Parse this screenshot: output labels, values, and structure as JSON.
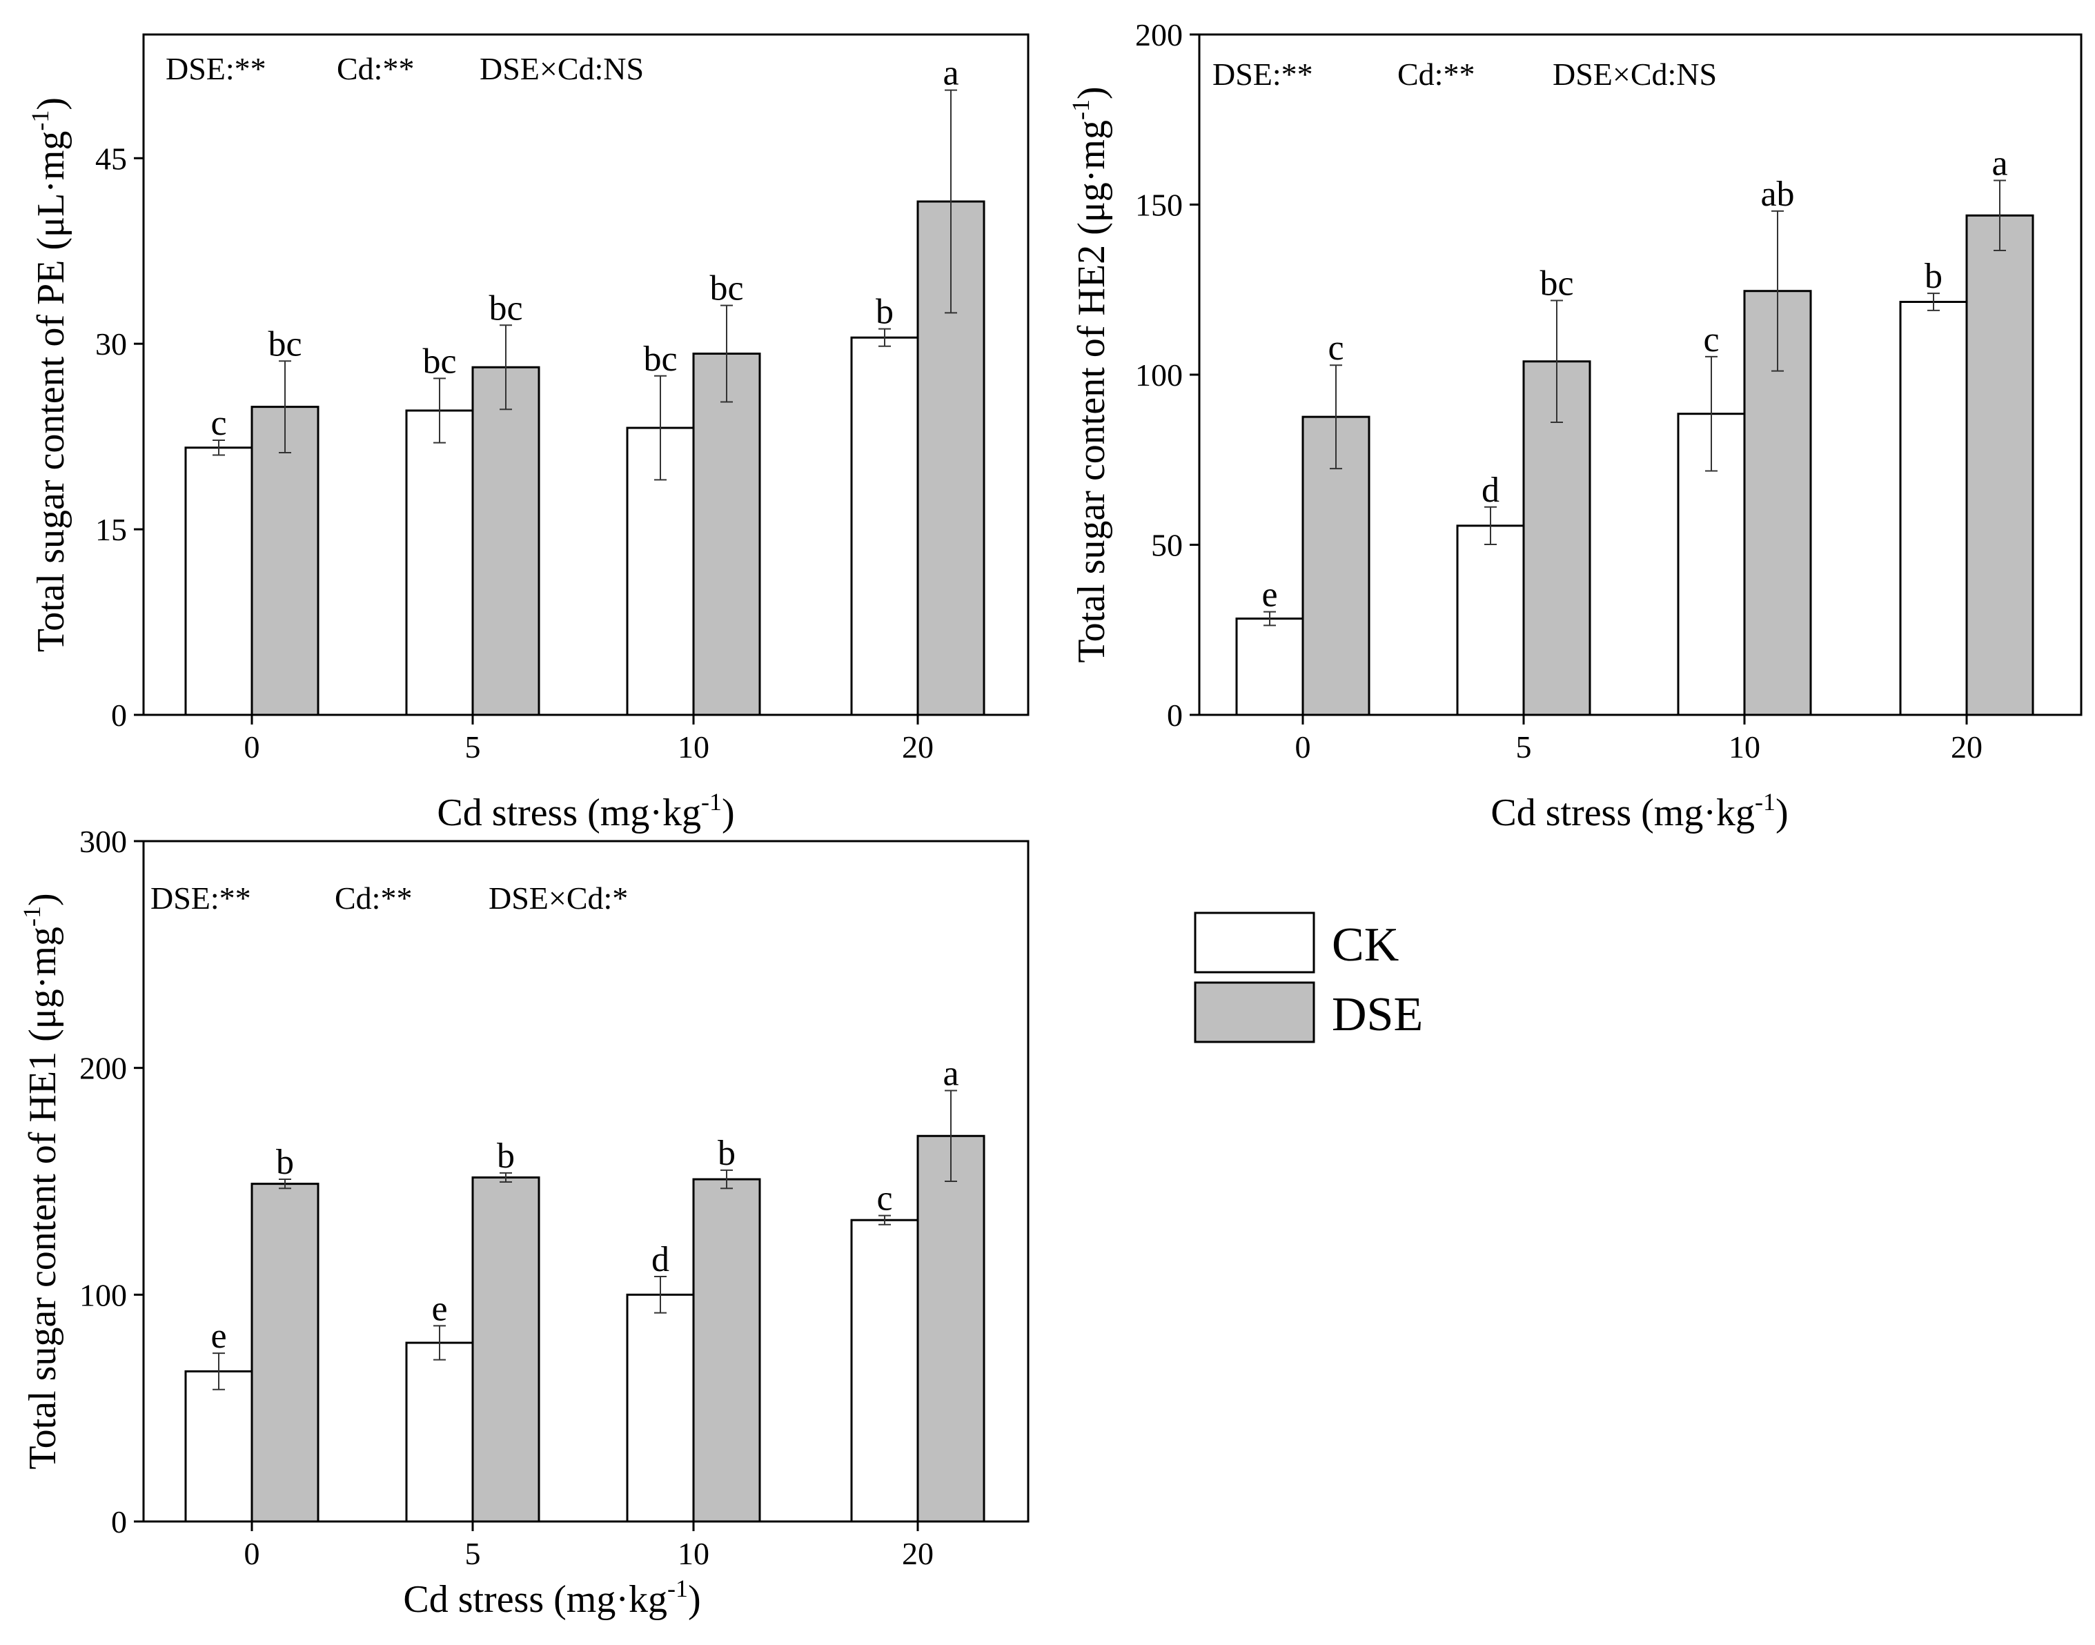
{
  "legend": {
    "items": [
      {
        "label": "CK",
        "color": "#ffffff"
      },
      {
        "label": "DSE",
        "color": "#bfbfbf"
      }
    ]
  },
  "chart_data": [
    {
      "id": "pe",
      "type": "bar",
      "title": "",
      "categories": [
        "0",
        "5",
        "10",
        "20"
      ],
      "xlabel_main": "Cd stress (mg·kg",
      "xlabel_sup": "-1",
      "xlabel_end": ")",
      "ylabel_main": "Total sugar content of PE  (μL·mg",
      "ylabel_sup": "-1",
      "ylabel_end": ")",
      "ylim": [
        0,
        55
      ],
      "yticks": [
        0,
        15,
        30,
        45
      ],
      "stats": [
        "DSE:**",
        "Cd:**",
        "DSE×Cd:NS"
      ],
      "series": [
        {
          "name": "CK",
          "values": [
            21.6,
            24.6,
            23.2,
            30.5
          ],
          "errors": [
            0.6,
            2.6,
            4.2,
            0.7
          ],
          "labels": [
            "c",
            "bc",
            "bc",
            "b"
          ]
        },
        {
          "name": "DSE",
          "values": [
            24.9,
            28.1,
            29.2,
            41.5
          ],
          "errors": [
            3.7,
            3.4,
            3.9,
            9.0
          ],
          "labels": [
            "bc",
            "bc",
            "bc",
            "a"
          ]
        }
      ]
    },
    {
      "id": "he2",
      "type": "bar",
      "title": "",
      "categories": [
        "0",
        "5",
        "10",
        "20"
      ],
      "xlabel_main": "Cd  stress (mg·kg",
      "xlabel_sup": "-1",
      "xlabel_end": ")",
      "ylabel_main": "Total sugar content of HE2 (μg·mg",
      "ylabel_sup": "-1",
      "ylabel_end": ")",
      "ylim": [
        0,
        200
      ],
      "yticks": [
        0,
        50,
        100,
        150,
        200
      ],
      "stats": [
        "DSE:**",
        "Cd:**",
        "DSE×Cd:NS"
      ],
      "series": [
        {
          "name": "CK",
          "values": [
            28.3,
            55.6,
            88.5,
            121.4
          ],
          "errors": [
            2.0,
            5.5,
            16.8,
            2.5
          ],
          "labels": [
            "e",
            "d",
            "c",
            "b"
          ]
        },
        {
          "name": "DSE",
          "values": [
            87.6,
            103.9,
            124.6,
            146.8
          ],
          "errors": [
            15.2,
            17.9,
            23.5,
            10.3
          ],
          "labels": [
            "c",
            "bc",
            "ab",
            "a"
          ]
        }
      ]
    },
    {
      "id": "he1",
      "type": "bar",
      "title": "",
      "categories": [
        "0",
        "5",
        "10",
        "20"
      ],
      "xlabel_main": "Cd stress (mg·kg",
      "xlabel_sup": "-1",
      "xlabel_end": ")",
      "ylabel_main": "Total sugar content of HE1 (μg·mg",
      "ylabel_sup": "-1",
      "ylabel_end": ")",
      "ylim": [
        0,
        300
      ],
      "yticks": [
        0,
        100,
        200,
        300
      ],
      "stats": [
        "DSE:**",
        "Cd:**",
        "DSE×Cd:*"
      ],
      "series": [
        {
          "name": "CK",
          "values": [
            66.2,
            78.8,
            100.0,
            132.9
          ],
          "errors": [
            8.0,
            7.5,
            8.0,
            2.0
          ],
          "labels": [
            "e",
            "e",
            "d",
            "c"
          ]
        },
        {
          "name": "DSE",
          "values": [
            148.9,
            151.7,
            150.9,
            170.0
          ],
          "errors": [
            2.0,
            2.0,
            4.0,
            20.0
          ],
          "labels": [
            "b",
            "b",
            "b",
            "a"
          ]
        }
      ]
    }
  ]
}
